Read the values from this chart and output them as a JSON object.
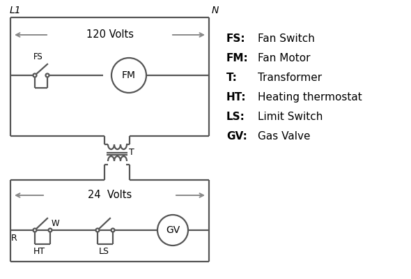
{
  "bg_color": "#ffffff",
  "line_color": "#555555",
  "text_color": "#000000",
  "legend": [
    [
      "FS:",
      "Fan Switch"
    ],
    [
      "FM:",
      "Fan Motor"
    ],
    [
      "T:",
      "Transformer"
    ],
    [
      "HT:",
      "Heating thermostat"
    ],
    [
      "LS:",
      "Limit Switch"
    ],
    [
      "GV:",
      "Gas Valve"
    ]
  ],
  "arrow_color": "#888888",
  "lw": 1.6
}
